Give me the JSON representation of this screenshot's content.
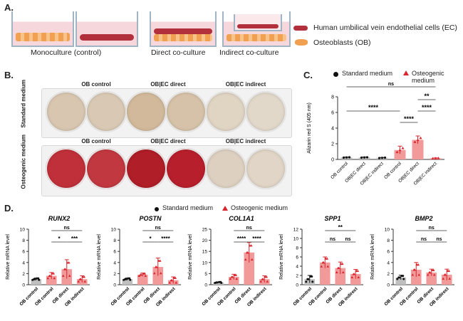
{
  "panels": {
    "a": "A.",
    "b": "B.",
    "c": "C.",
    "d": "D."
  },
  "panelA": {
    "captions": [
      "Monoculture (control)",
      "Direct co-culture",
      "Indirect co-culture"
    ],
    "legend_ec": "Human umbilical vein endothelial cells (EC)",
    "legend_ob": "Osteoblasts (OB)"
  },
  "panelB": {
    "col_titles": [
      "OB control",
      "OB|EC direct",
      "OB|EC indirect"
    ],
    "row_titles": [
      "Standard medium",
      "Osteogenic medium"
    ],
    "well_colors": {
      "standard": [
        "#d8c6b0",
        "#d9c9b4",
        "#d2b99b",
        "#d6c2a8",
        "#e0d4c3",
        "#e2d8ca"
      ],
      "osteogenic": [
        "#c0303a",
        "#c23840",
        "#b01e28",
        "#b81f2c",
        "#ddd0c0",
        "#e0d5c6"
      ]
    }
  },
  "legend": {
    "standard": "Standard medium",
    "osteogenic": "Osteogenic medium"
  },
  "colors": {
    "osteogenic": "#d9262e",
    "bar_fill": "#f29a9a",
    "standard_bar": "#bfbfbf",
    "black": "#111111"
  },
  "chart_data": [
    {
      "id": "C",
      "type": "bar",
      "ylabel": "Alizarin red S (405 nm)",
      "ylim": [
        0,
        8
      ],
      "yticks": [
        0,
        2,
        4,
        6,
        8
      ],
      "categories": [
        "OB control",
        "OB|EC direct",
        "OB|EC indirect",
        "OB control",
        "OB|EC direct",
        "OB|EC indirect"
      ],
      "series": [
        {
          "name": "Standard medium",
          "values": [
            0.25,
            0.25,
            0.2,
            null,
            null,
            null
          ]
        },
        {
          "name": "Osteogenic medium",
          "values": [
            null,
            null,
            null,
            1.2,
            2.5,
            0.15
          ]
        }
      ],
      "errors": [
        0.05,
        0.05,
        0.05,
        0.5,
        0.5,
        0.05
      ],
      "significance": [
        {
          "from": 0,
          "to": 5,
          "label": "ns"
        },
        {
          "from": 4,
          "to": 5,
          "label": "**"
        },
        {
          "from": 0,
          "to": 3,
          "label": "****"
        },
        {
          "from": 3,
          "to": 4,
          "label": "****"
        },
        {
          "from": 4,
          "to": 5,
          "label": "****"
        }
      ]
    },
    {
      "id": "RUNX2",
      "title": "RUNX2",
      "type": "bar",
      "ylabel": "Relative mRNA level",
      "ylim": [
        0,
        10
      ],
      "yticks": [
        0,
        2,
        4,
        6,
        8,
        10
      ],
      "categories": [
        "OB control",
        "OB control",
        "OB direct",
        "OB indirect"
      ],
      "values": [
        1.0,
        1.6,
        2.8,
        1.0
      ],
      "errors": [
        0.2,
        0.6,
        1.7,
        0.6
      ],
      "significance": [
        {
          "from": 1,
          "to": 3,
          "label": "ns"
        },
        {
          "from": 1,
          "to": 2,
          "label": "*"
        },
        {
          "from": 2,
          "to": 3,
          "label": "***"
        }
      ]
    },
    {
      "id": "POSTN",
      "title": "POSTN",
      "type": "bar",
      "ylabel": "Relative mRNA level",
      "ylim": [
        0,
        10
      ],
      "yticks": [
        0,
        2,
        4,
        6,
        8,
        10
      ],
      "categories": [
        "OB control",
        "OB control",
        "OB direct",
        "OB indirect"
      ],
      "values": [
        1.0,
        1.8,
        3.2,
        0.8
      ],
      "errors": [
        0.2,
        0.3,
        1.6,
        0.6
      ],
      "significance": [
        {
          "from": 1,
          "to": 3,
          "label": "ns"
        },
        {
          "from": 1,
          "to": 2,
          "label": "*"
        },
        {
          "from": 2,
          "to": 3,
          "label": "****"
        }
      ]
    },
    {
      "id": "COL1A1",
      "title": "COL1A1",
      "type": "bar",
      "ylabel": "Relative mRNA level",
      "ylim": [
        0,
        25
      ],
      "yticks": [
        0,
        5,
        10,
        15,
        20,
        25
      ],
      "categories": [
        "OB control",
        "OB control",
        "OB direct",
        "OB indirect"
      ],
      "values": [
        1.0,
        3.5,
        14.5,
        2.5
      ],
      "errors": [
        0.3,
        1.2,
        4.5,
        1.5
      ],
      "significance": [
        {
          "from": 1,
          "to": 3,
          "label": "ns"
        },
        {
          "from": 1,
          "to": 2,
          "label": "****"
        },
        {
          "from": 2,
          "to": 3,
          "label": "****"
        }
      ]
    },
    {
      "id": "SPP1",
      "title": "SPP1",
      "type": "bar",
      "ylabel": "Relative mRNA level",
      "ylim": [
        0,
        12
      ],
      "yticks": [
        0,
        2,
        4,
        6,
        8,
        10,
        12
      ],
      "categories": [
        "OB control",
        "OB control",
        "OB direct",
        "OB indirect"
      ],
      "values": [
        1.2,
        4.8,
        3.6,
        2.3
      ],
      "errors": [
        0.8,
        1.2,
        1.3,
        1.0
      ],
      "significance": [
        {
          "from": 1,
          "to": 3,
          "label": "**"
        },
        {
          "from": 1,
          "to": 2,
          "label": "ns"
        },
        {
          "from": 2,
          "to": 3,
          "label": "ns"
        }
      ]
    },
    {
      "id": "BMP2",
      "title": "BMP2",
      "type": "bar",
      "ylabel": "Relative mRNA level",
      "ylim": [
        0,
        10
      ],
      "yticks": [
        0,
        2,
        4,
        6,
        8,
        10
      ],
      "categories": [
        "OB control",
        "OB control",
        "OB direct",
        "OB indirect"
      ],
      "values": [
        1.3,
        2.7,
        2.2,
        1.8
      ],
      "errors": [
        0.4,
        1.3,
        0.6,
        1.0
      ],
      "significance": [
        {
          "from": 1,
          "to": 3,
          "label": "ns"
        },
        {
          "from": 1,
          "to": 2,
          "label": "ns"
        },
        {
          "from": 2,
          "to": 3,
          "label": "ns"
        }
      ]
    }
  ]
}
